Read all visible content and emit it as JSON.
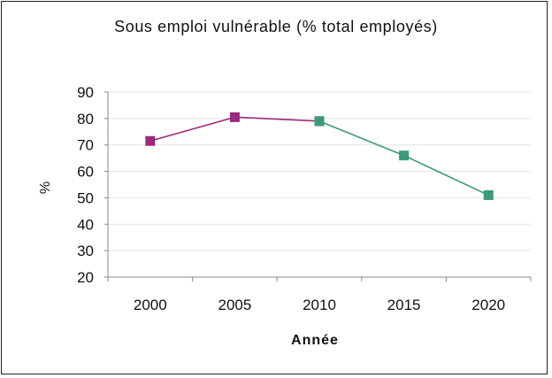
{
  "chart_data": {
    "type": "line",
    "title": "Sous emploi vulnérable (% total employés)",
    "xlabel": "Année",
    "ylabel": "%",
    "x": [
      "2000",
      "2005",
      "2010",
      "2015",
      "2020"
    ],
    "ylim": [
      20,
      90
    ],
    "yticks": [
      20,
      30,
      40,
      50,
      60,
      70,
      80,
      90
    ],
    "series": [
      {
        "color": "#9a2a7a",
        "x": [
          "2000",
          "2005",
          "2010"
        ],
        "values": [
          71.5,
          80.5,
          79
        ]
      },
      {
        "color": "#3a9a7a",
        "x": [
          "2010",
          "2015",
          "2020"
        ],
        "values": [
          79,
          66,
          51
        ]
      }
    ],
    "grid": true,
    "legend": "none"
  },
  "colors": {
    "axis": "#888888",
    "grid": "#e4e4e4",
    "frame": "#222222"
  }
}
